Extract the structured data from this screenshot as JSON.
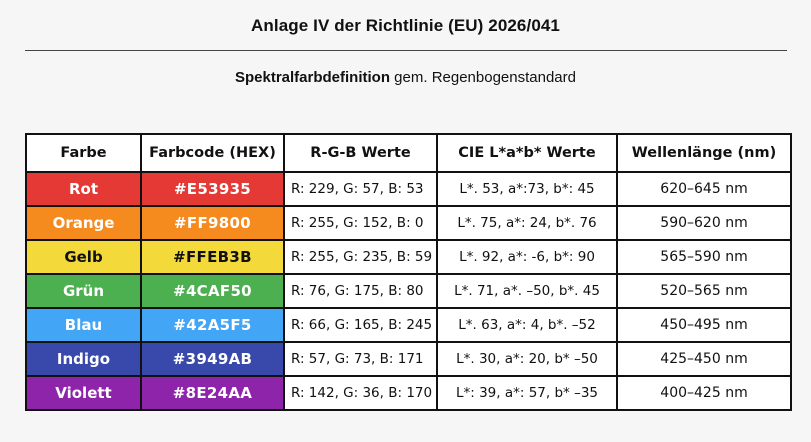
{
  "header": {
    "title": "Anlage IV der Richtlinie (EU) 2026/041",
    "subtitle_bold": "Spektralfarbdefinition",
    "subtitle_rest": " gem. Regenbogenstandard"
  },
  "table": {
    "columns": [
      "Farbe",
      "Farbcode (HEX)",
      "R-G-B Werte",
      "CIE L*a*b* Werte",
      "Wellenlänge (nm)"
    ],
    "rows": [
      {
        "name": "Rot",
        "hex": "#E53935",
        "rgb": "R: 229, G: 57, B: 53",
        "cie": "L*. 53, a*:73, b*: 45",
        "wl": "620–645 nm",
        "bg": "#E53935",
        "text_color": "#ffffff"
      },
      {
        "name": "Orange",
        "hex": "#FF9800",
        "rgb": "R: 255, G: 152, B: 0",
        "cie": "L*. 75, a*: 24, b*. 76",
        "wl": "590–620 nm",
        "bg": "#F58A1F",
        "text_color": "#ffffff"
      },
      {
        "name": "Gelb",
        "hex": "#FFEB3B",
        "rgb": "R: 255, G: 235, B: 59",
        "cie": "L*. 92, a*: -6, b*: 90",
        "wl": "565–590 nm",
        "bg": "#F4D93A",
        "text_color": "#111111"
      },
      {
        "name": "Grün",
        "hex": "#4CAF50",
        "rgb": "R: 76, G: 175, B: 80",
        "cie": "L*. 71, a*. –50, b*. 45",
        "wl": "520–565 nm",
        "bg": "#4CAF50",
        "text_color": "#ffffff"
      },
      {
        "name": "Blau",
        "hex": "#42A5F5",
        "rgb": "R: 66, G: 165, B: 245",
        "cie": "L*. 63, a*: 4, b*. –52",
        "wl": "450–495 nm",
        "bg": "#42A5F5",
        "text_color": "#ffffff"
      },
      {
        "name": "Indigo",
        "hex": "#3949AB",
        "rgb": "R: 57, G: 73, B: 171",
        "cie": "L*. 30, a*: 20, b* –50",
        "wl": "425–450 nm",
        "bg": "#3949AB",
        "text_color": "#ffffff"
      },
      {
        "name": "Violett",
        "hex": "#8E24AA",
        "rgb": "R: 142, G: 36, B: 170",
        "cie": "L*: 39, a*: 57, b* –35",
        "wl": "400–425 nm",
        "bg": "#8E24AA",
        "text_color": "#ffffff"
      }
    ]
  }
}
